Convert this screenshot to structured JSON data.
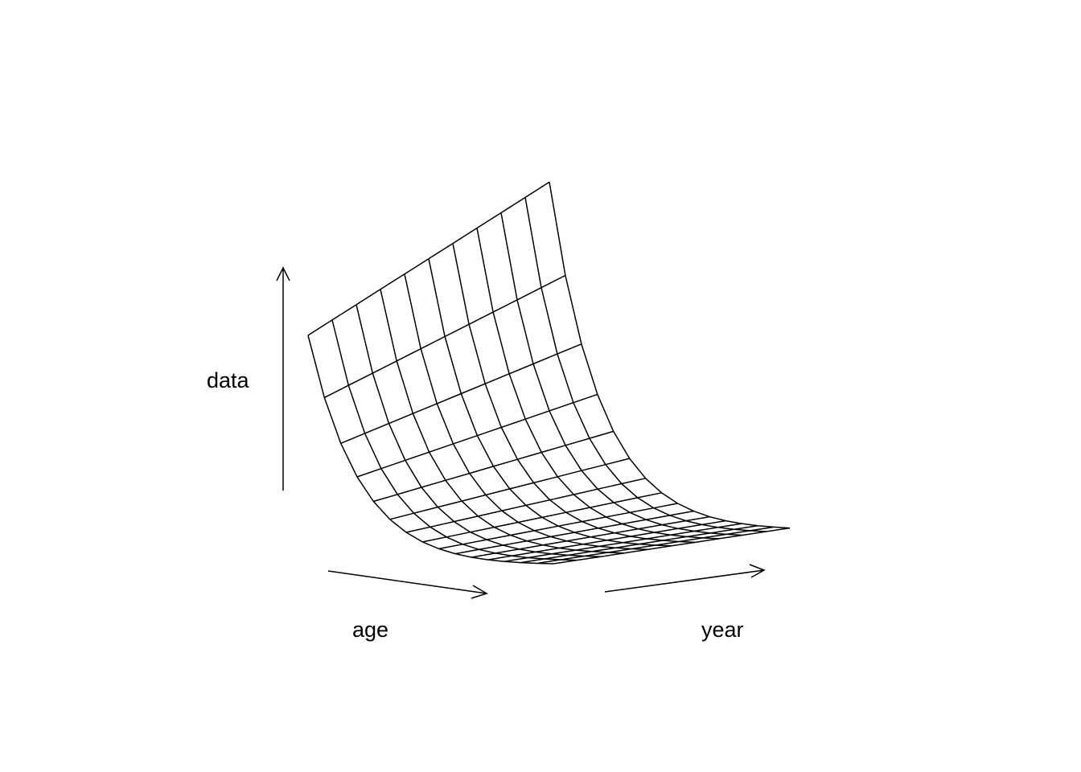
{
  "chart_data": {
    "type": "surface",
    "title": "",
    "xlabel": "age",
    "ylabel": "year",
    "zlabel": "data",
    "grid": false,
    "ticks": false,
    "box": false,
    "mesh": {
      "age_lines": 16,
      "year_lines": 11,
      "shape": "exponential decay along age, nearly constant across year",
      "z_start": 1.0,
      "z_end_fraction": 0.01
    }
  }
}
